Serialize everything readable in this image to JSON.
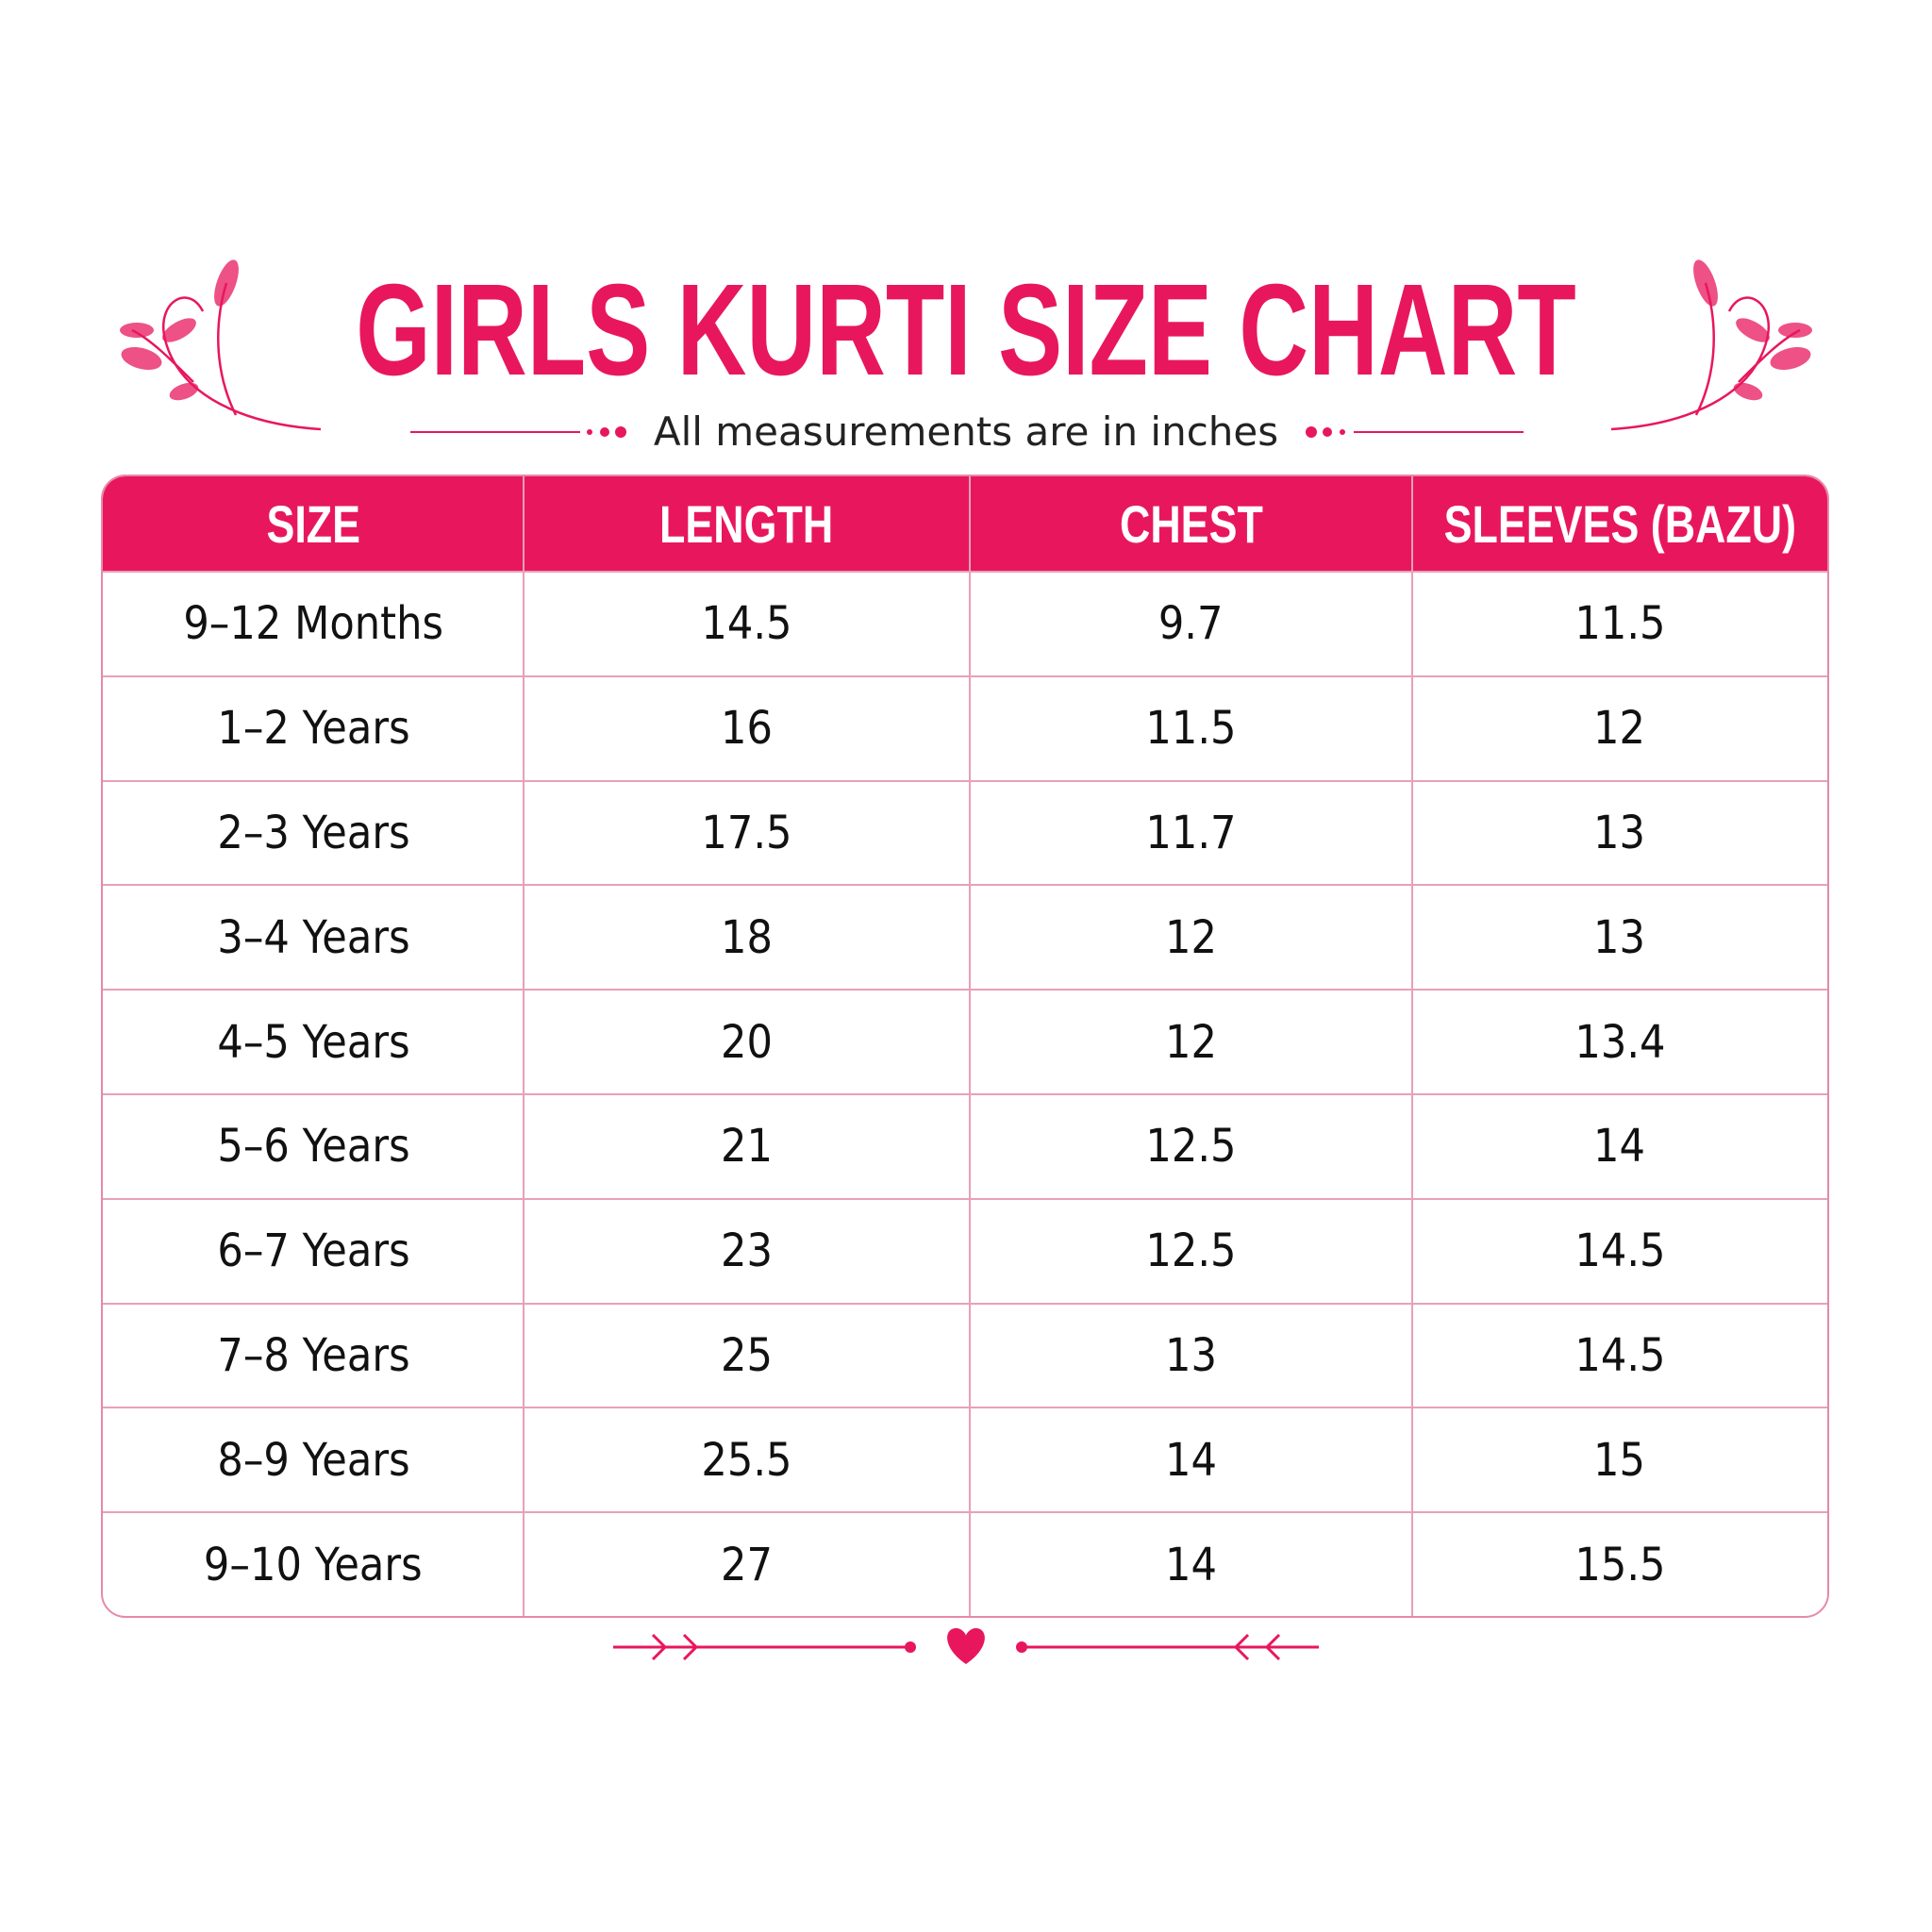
{
  "header": {
    "title": "GIRLS KURTI SIZE CHART",
    "subtitle": "All measurements are in inches"
  },
  "table": {
    "columns": [
      "SIZE",
      "LENGTH",
      "CHEST",
      "SLEEVES (BAZU)"
    ],
    "rows": [
      [
        "9–12 Months",
        "14.5",
        "9.7",
        "11.5"
      ],
      [
        "1–2 Years",
        "16",
        "11.5",
        "12"
      ],
      [
        "2–3 Years",
        "17.5",
        "11.7",
        "13"
      ],
      [
        "3–4 Years",
        "18",
        "12",
        "13"
      ],
      [
        "4–5 Years",
        "20",
        "12",
        "13.4"
      ],
      [
        "5–6 Years",
        "21",
        "12.5",
        "14"
      ],
      [
        "6–7 Years",
        "23",
        "12.5",
        "14.5"
      ],
      [
        "7–8 Years",
        "25",
        "13",
        "14.5"
      ],
      [
        "8–9 Years",
        "25.5",
        "14",
        "15"
      ],
      [
        "9–10 Years",
        "27",
        "14",
        "15.5"
      ]
    ]
  }
}
